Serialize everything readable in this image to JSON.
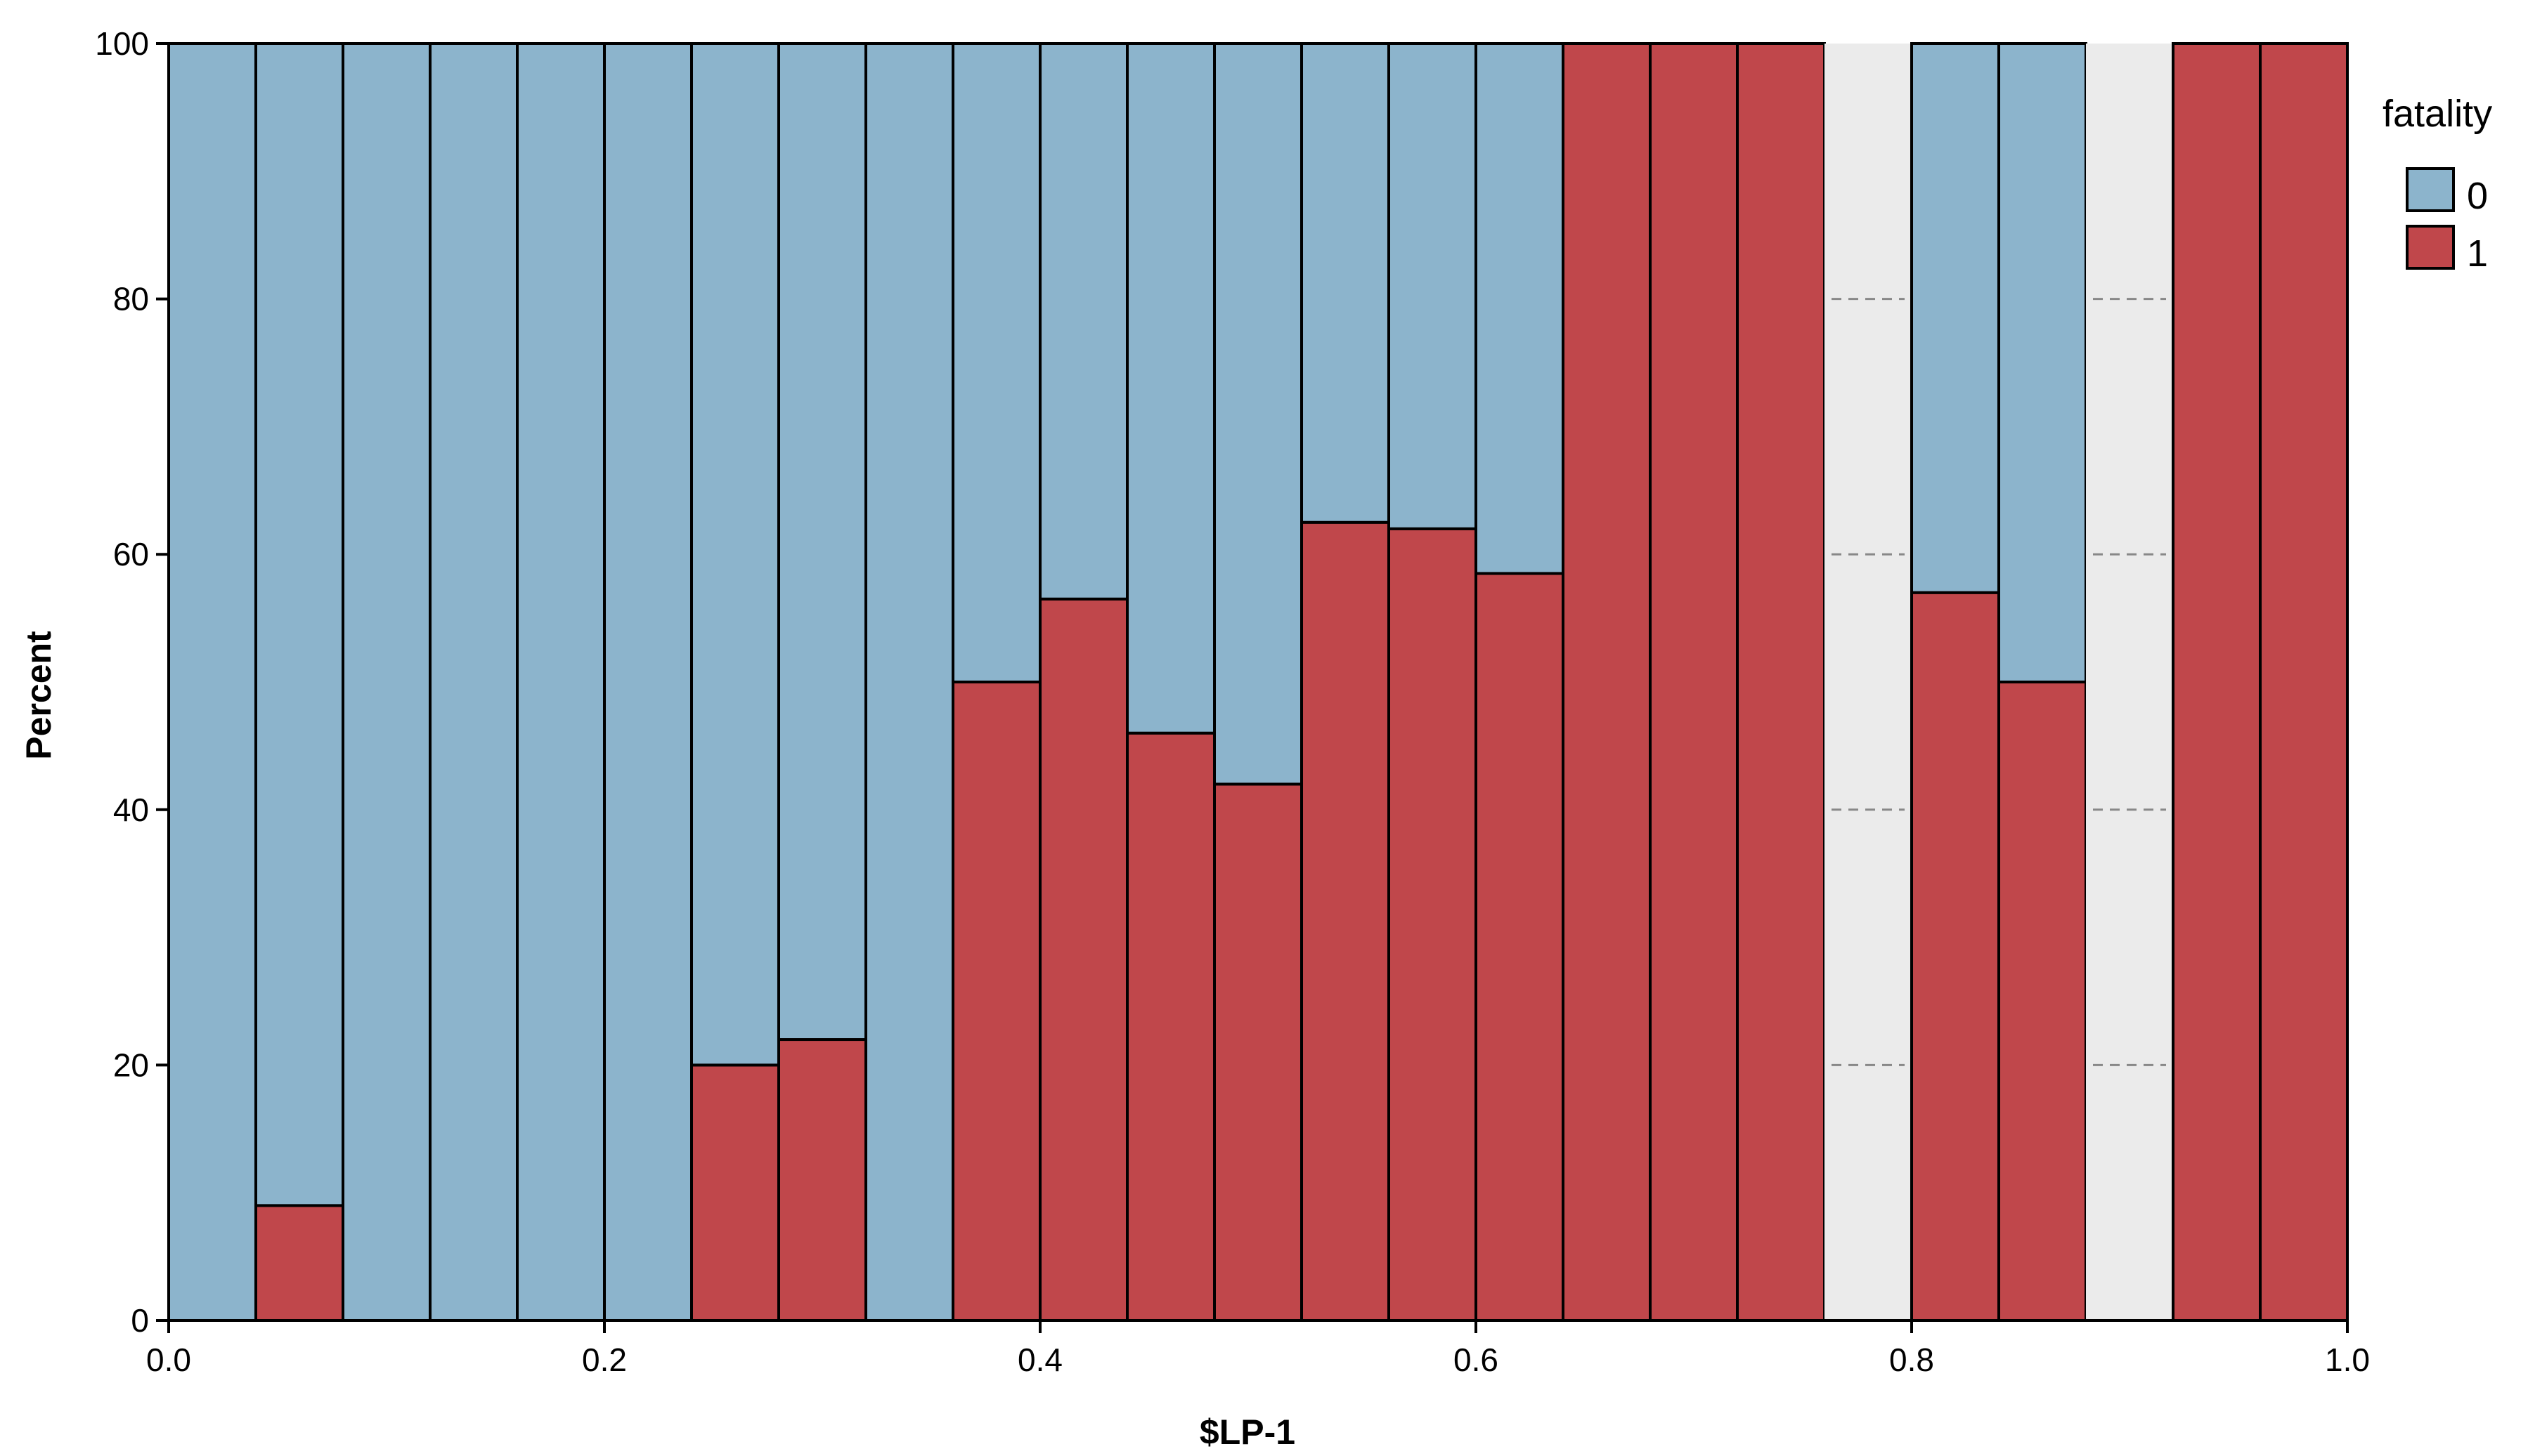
{
  "chart_data": {
    "type": "bar",
    "stacked": true,
    "normalized_percent": true,
    "xlabel": "$LP-1",
    "ylabel": "Percent",
    "xlim": [
      0.0,
      1.0
    ],
    "ylim": [
      0,
      100
    ],
    "x_ticks": [
      "0.0",
      "0.2",
      "0.4",
      "0.6",
      "0.8",
      "1.0"
    ],
    "y_ticks": [
      "0",
      "20",
      "40",
      "60",
      "80",
      "100"
    ],
    "bin_width": 0.04,
    "bins": [
      0.0,
      0.04,
      0.08,
      0.12,
      0.16,
      0.2,
      0.24,
      0.28,
      0.32,
      0.36,
      0.4,
      0.44,
      0.48,
      0.52,
      0.56,
      0.6,
      0.64,
      0.68,
      0.72,
      0.76,
      0.8,
      0.84,
      0.88,
      0.92,
      0.96
    ],
    "series": [
      {
        "name": "0",
        "color": "#8cb4cc",
        "values": [
          100,
          91,
          100,
          100,
          100,
          100,
          80,
          78,
          100,
          50,
          43.5,
          54,
          58,
          37.5,
          38,
          41.5,
          0,
          0,
          0,
          null,
          43,
          50,
          null,
          0,
          0
        ]
      },
      {
        "name": "1",
        "color": "#c0474b",
        "values": [
          0,
          9,
          0,
          0,
          0,
          0,
          20,
          22,
          0,
          50,
          56.5,
          46,
          42,
          62.5,
          62,
          58.5,
          100,
          100,
          100,
          null,
          57,
          50,
          null,
          100,
          100
        ]
      }
    ],
    "empty_bin_color": "#ebebeb",
    "legend": {
      "title": "fatality",
      "position": "right"
    }
  }
}
